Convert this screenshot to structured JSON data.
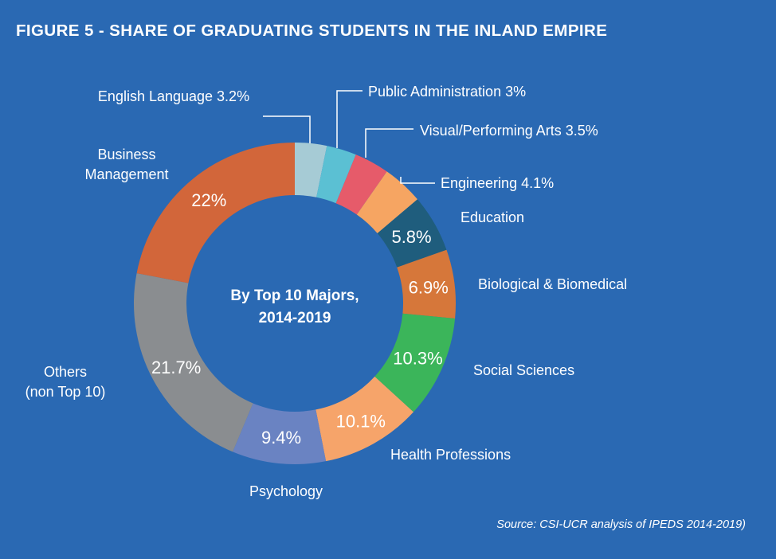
{
  "figure": {
    "title": "FIGURE 5 - SHARE OF GRADUATING STUDENTS IN THE INLAND EMPIRE",
    "source": "Source: CSI-UCR analysis of IPEDS 2014-2019)"
  },
  "chart_data": {
    "type": "pie",
    "center_label": [
      "By Top 10 Majors,",
      "2014-2019"
    ],
    "unit": "%",
    "background": "#2a69b3",
    "slices": [
      {
        "name": "English Language",
        "value": 3.2,
        "color": "#a6cbd5",
        "label_lines": [
          "English Language 3.2%"
        ],
        "value_label": ""
      },
      {
        "name": "Public Administration",
        "value": 3.0,
        "color": "#5bc0d3",
        "label_lines": [
          "Public Administration 3%"
        ],
        "value_label": ""
      },
      {
        "name": "Visual/Performing Arts",
        "value": 3.5,
        "color": "#e65b6a",
        "label_lines": [
          "Visual/Performing Arts 3.5%"
        ],
        "value_label": ""
      },
      {
        "name": "Engineering",
        "value": 4.1,
        "color": "#f6a562",
        "label_lines": [
          "Engineering 4.1%"
        ],
        "value_label": ""
      },
      {
        "name": "Education",
        "value": 5.8,
        "color": "#1f5d7d",
        "label_lines": [
          "Education"
        ],
        "value_label": "5.8%"
      },
      {
        "name": "Biological & Biomedical",
        "value": 6.9,
        "color": "#d6773a",
        "label_lines": [
          "Biological & Biomedical"
        ],
        "value_label": "6.9%"
      },
      {
        "name": "Social Sciences",
        "value": 10.3,
        "color": "#3bb55a",
        "label_lines": [
          "Social Sciences"
        ],
        "value_label": "10.3%"
      },
      {
        "name": "Health Professions",
        "value": 10.1,
        "color": "#f6a46a",
        "label_lines": [
          "Health Professions"
        ],
        "value_label": "10.1%"
      },
      {
        "name": "Psychology",
        "value": 9.4,
        "color": "#6a83c2",
        "label_lines": [
          "Psychology"
        ],
        "value_label": "9.4%"
      },
      {
        "name": "Others (non Top 10)",
        "value": 21.7,
        "color": "#8a8d90",
        "label_lines": [
          "Others",
          "(non Top 10)"
        ],
        "value_label": "21.7%"
      },
      {
        "name": "Business Management",
        "value": 22.0,
        "color": "#d2663a",
        "label_lines": [
          "Business",
          "Management"
        ],
        "value_label": "22%"
      }
    ]
  }
}
